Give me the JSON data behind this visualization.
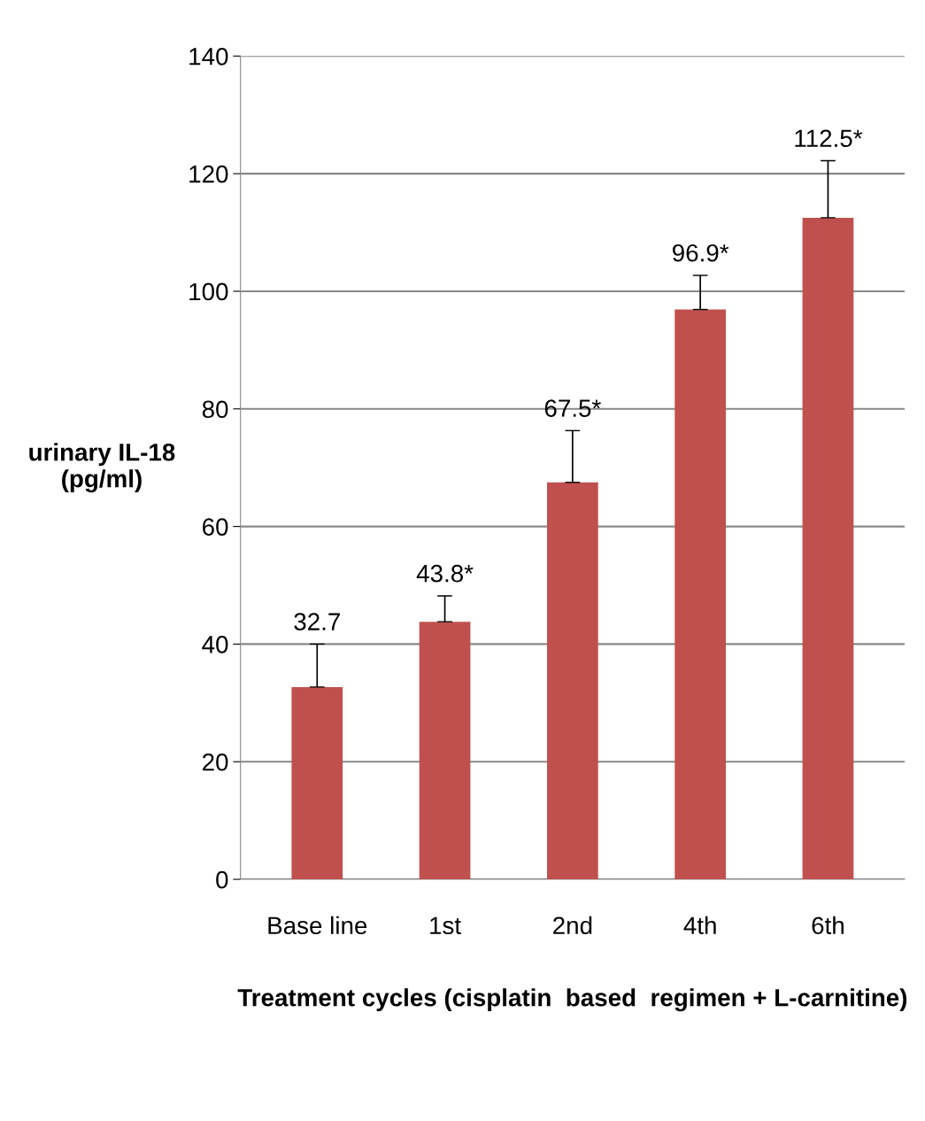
{
  "chart_data": {
    "type": "bar",
    "xlabel": "Treatment cycles (cisplatin  based  regimen + L-carnitine)",
    "ylabel": "urinary IL-18\n(pg/ml)",
    "categories": [
      "Base line",
      "1st",
      "2nd",
      "4th",
      "6th"
    ],
    "values": [
      32.7,
      43.8,
      67.5,
      96.9,
      112.5
    ],
    "value_labels": [
      "32.7",
      "43.8*",
      "67.5*",
      "96.9*",
      "112.5*"
    ],
    "errors": [
      [
        32.7,
        40.0
      ],
      [
        43.8,
        48.2
      ],
      [
        67.5,
        76.3
      ],
      [
        96.9,
        102.7
      ],
      [
        112.5,
        122.2
      ]
    ],
    "color": "#c0504d",
    "ylim": [
      0,
      140
    ],
    "yticks": [
      0,
      20,
      40,
      60,
      80,
      100,
      120,
      140
    ],
    "grid": "y"
  }
}
